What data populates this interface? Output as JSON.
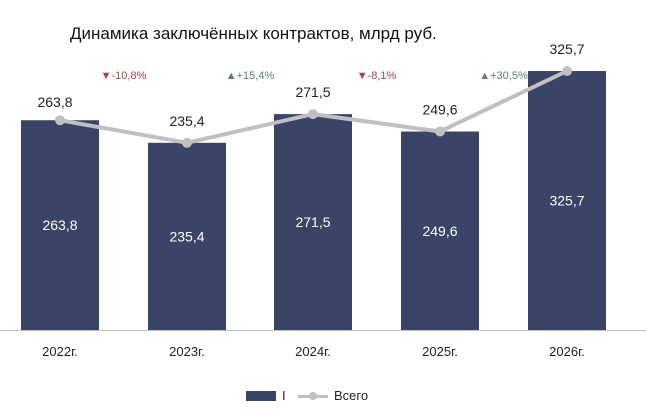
{
  "title": "Динамика заключённых контрактов, млрд руб.",
  "colors": {
    "bar": "#3a4466",
    "line": "#c0c0c0",
    "up": "#5b7d77",
    "down": "#b04040",
    "text": "#222222",
    "bar_text": "#ffffff"
  },
  "chart_data": {
    "type": "bar",
    "categories": [
      "2022г.",
      "2023г.",
      "2024г.",
      "2025г.",
      "2026г."
    ],
    "series": [
      {
        "name": "I",
        "type": "bar",
        "values": [
          263.8,
          235.4,
          271.5,
          249.6,
          325.7
        ],
        "labels": [
          "263,8",
          "235,4",
          "271,5",
          "249,6",
          "325,7"
        ]
      },
      {
        "name": "Всего",
        "type": "line",
        "values": [
          263.8,
          235.4,
          271.5,
          249.6,
          325.7
        ],
        "labels": [
          "263,8",
          "235,4",
          "271,5",
          "249,6",
          "325,7"
        ]
      }
    ],
    "changes": [
      {
        "text": "-10,8%",
        "direction": "down"
      },
      {
        "text": "+15,4%",
        "direction": "up"
      },
      {
        "text": "-8,1%",
        "direction": "down"
      },
      {
        "text": "+30,5%",
        "direction": "up"
      }
    ],
    "ylim": [
      0,
      325.7
    ],
    "grid": false,
    "legend_position": "bottom"
  },
  "legend": {
    "bar_label": "I",
    "line_label": "Всего"
  }
}
